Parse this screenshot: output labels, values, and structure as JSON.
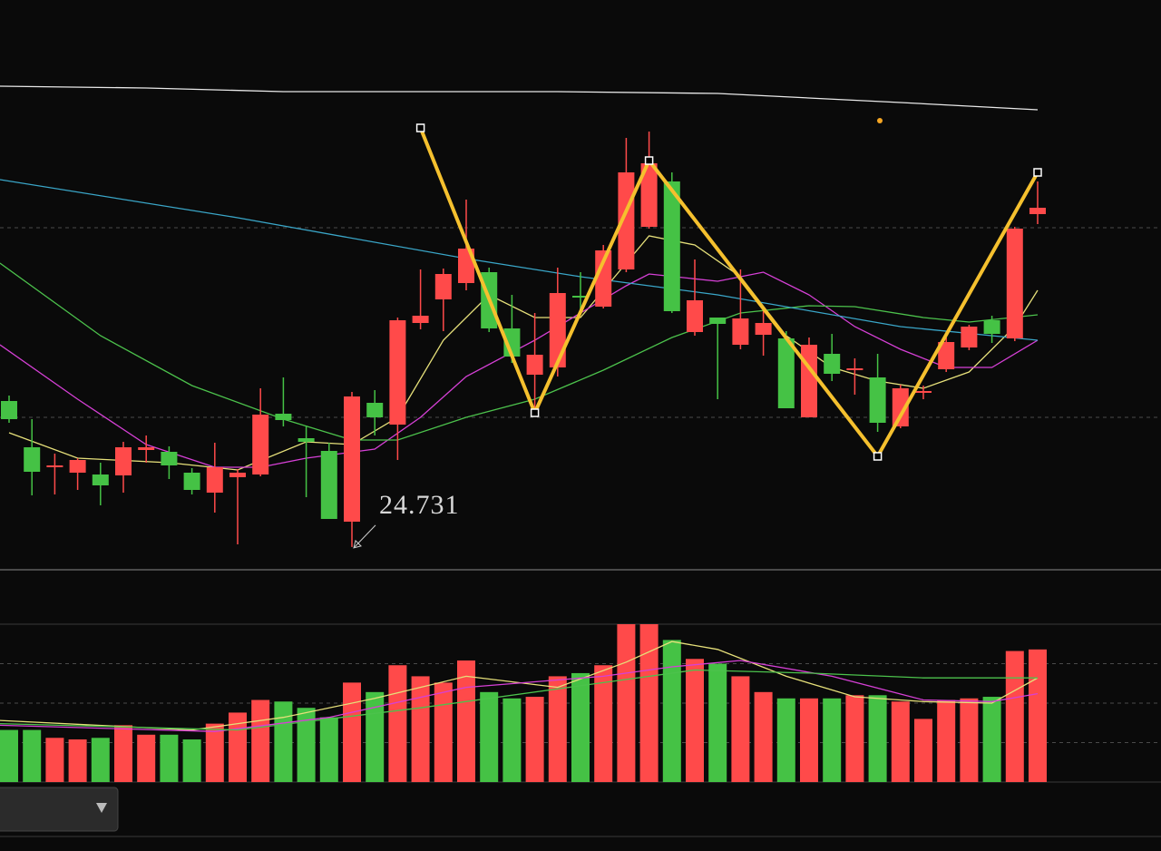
{
  "chart_data": [
    {
      "type": "candlestick",
      "open": [
        26.34,
        25.83,
        25.62,
        25.55,
        25.53,
        25.52,
        25.8,
        25.78,
        25.55,
        25.33,
        25.5,
        25.53,
        26.2,
        25.93,
        25.79,
        25.01,
        26.32,
        26.08,
        27.2,
        27.46,
        27.64,
        27.76,
        27.14,
        26.63,
        26.71,
        27.5,
        27.38,
        27.79,
        28.26,
        28.76,
        27.1,
        27.26,
        26.96,
        27.07,
        27.03,
        26.16,
        26.86,
        26.68,
        26.6,
        26.06,
        26.43,
        26.69,
        26.93,
        27.23,
        27.03,
        28.4
      ],
      "high": [
        26.4,
        26.14,
        25.76,
        25.71,
        25.66,
        25.89,
        25.96,
        25.84,
        25.6,
        25.88,
        25.59,
        26.48,
        26.6,
        26.07,
        25.88,
        26.44,
        26.46,
        27.26,
        27.79,
        27.8,
        28.56,
        27.81,
        27.51,
        27.31,
        27.81,
        27.76,
        28.06,
        29.24,
        29.31,
        28.86,
        27.9,
        27.26,
        27.79,
        27.36,
        27.11,
        27.04,
        27.08,
        26.81,
        26.86,
        26.52,
        26.51,
        27.04,
        27.18,
        27.28,
        28.26,
        28.76
      ],
      "low": [
        26.1,
        25.3,
        25.31,
        25.36,
        25.19,
        25.33,
        25.66,
        25.48,
        25.31,
        25.11,
        24.76,
        25.51,
        26.06,
        25.28,
        25.04,
        24.731,
        25.96,
        25.69,
        27.13,
        27.11,
        27.56,
        27.1,
        26.76,
        26.26,
        26.61,
        27.31,
        27.36,
        27.76,
        28.24,
        27.31,
        27.06,
        26.36,
        26.91,
        26.84,
        26.26,
        26.16,
        26.56,
        26.41,
        26.0,
        26.04,
        26.36,
        26.66,
        26.9,
        26.98,
        27.0,
        28.29
      ],
      "close": [
        26.14,
        25.56,
        25.63,
        25.69,
        25.41,
        25.83,
        25.83,
        25.63,
        25.36,
        25.61,
        25.55,
        26.19,
        26.13,
        25.89,
        25.04,
        26.39,
        26.16,
        27.23,
        27.28,
        27.74,
        28.02,
        27.14,
        26.83,
        26.85,
        27.53,
        27.48,
        28.0,
        28.86,
        28.96,
        27.33,
        27.45,
        27.19,
        27.25,
        27.2,
        26.26,
        26.96,
        26.64,
        26.7,
        26.1,
        26.48,
        26.45,
        26.99,
        27.16,
        27.08,
        28.24,
        28.47
      ],
      "up_color": "#ff4a4a",
      "down_color": "#45c245",
      "ylim": [
        24.48,
        30.76
      ],
      "yticks": [
        26.16,
        28.25
      ],
      "grid": true,
      "lines": [
        {
          "color": "#e6e07a",
          "x": [
            0,
            3,
            7,
            10,
            13,
            15,
            17,
            19,
            21,
            23,
            25,
            27,
            28,
            30,
            32,
            34,
            36,
            38,
            40,
            42,
            44,
            45
          ],
          "values": [
            25.99,
            25.71,
            25.66,
            25.58,
            25.89,
            25.86,
            26.16,
            27.01,
            27.51,
            27.26,
            27.26,
            27.86,
            28.16,
            28.06,
            27.71,
            27.06,
            26.71,
            26.56,
            26.48,
            26.66,
            27.16,
            27.56
          ]
        },
        {
          "color": "#d640d6",
          "x": [
            -0.4,
            3,
            6,
            9,
            11,
            13,
            16,
            18,
            20,
            23,
            25,
            27,
            28,
            31,
            33,
            35,
            37,
            39,
            41,
            43,
            45
          ],
          "values": [
            26.96,
            26.36,
            25.86,
            25.61,
            25.61,
            25.71,
            25.81,
            26.16,
            26.61,
            27.01,
            27.31,
            27.61,
            27.74,
            27.66,
            27.76,
            27.51,
            27.16,
            26.91,
            26.71,
            26.71,
            27.01
          ]
        },
        {
          "color": "#4cc24c",
          "x": [
            -0.4,
            4,
            8,
            12,
            15,
            17,
            20,
            23,
            26,
            29,
            32,
            35,
            37,
            40,
            42,
            45
          ],
          "values": [
            27.86,
            27.06,
            26.51,
            26.14,
            25.91,
            25.91,
            26.16,
            26.36,
            26.68,
            27.04,
            27.31,
            27.39,
            27.38,
            27.26,
            27.21,
            27.29
          ]
        },
        {
          "color": "#3aa6c8",
          "x": [
            -0.4,
            10,
            20,
            25,
            31,
            39,
            45
          ],
          "values": [
            28.78,
            28.36,
            27.91,
            27.71,
            27.51,
            27.16,
            27.01
          ]
        },
        {
          "color": "#e8e8e8",
          "x": [
            -0.4,
            6,
            12,
            24,
            31,
            39,
            45
          ],
          "values": [
            29.81,
            29.79,
            29.75,
            29.75,
            29.73,
            29.63,
            29.55
          ]
        }
      ],
      "zigzag": {
        "color": "#f5c02e",
        "x": [
          18,
          23,
          28,
          38,
          45
        ],
        "values": [
          29.35,
          26.21,
          28.99,
          25.73,
          28.86
        ]
      },
      "annotation": {
        "text": "24.731",
        "x": 15
      }
    },
    {
      "type": "bar",
      "values": [
        33,
        33,
        28,
        27,
        28,
        36,
        30,
        30,
        27,
        37,
        44,
        52,
        51,
        47,
        41,
        63,
        57,
        74,
        67,
        63,
        77,
        57,
        53,
        54,
        67,
        69,
        74,
        100,
        100,
        90,
        78,
        75,
        67,
        57,
        53,
        53,
        53,
        55,
        55,
        51,
        40,
        52,
        53,
        54,
        83,
        84
      ],
      "ylim": [
        0,
        100
      ],
      "yticks": [
        25,
        50,
        75
      ],
      "grid": true,
      "lines": [
        {
          "color": "#e6e07a",
          "x": [
            -0.4,
            8,
            12,
            16,
            20,
            24,
            27,
            29,
            31,
            34,
            37,
            40,
            43,
            45
          ],
          "values": [
            39,
            33,
            41,
            53,
            67,
            60,
            76,
            89,
            84,
            67,
            54,
            51,
            50,
            66
          ]
        },
        {
          "color": "#d640d6",
          "x": [
            -0.4,
            9,
            14,
            20,
            26,
            29,
            32,
            36,
            40,
            43,
            45
          ],
          "values": [
            36,
            32,
            41,
            60,
            67,
            73,
            77,
            67,
            52,
            51,
            56
          ]
        },
        {
          "color": "#4cc24c",
          "x": [
            -0.4,
            10,
            18,
            24,
            30,
            35,
            40,
            45
          ],
          "values": [
            37,
            33,
            47,
            59,
            71,
            69,
            66,
            66
          ]
        }
      ]
    }
  ]
}
